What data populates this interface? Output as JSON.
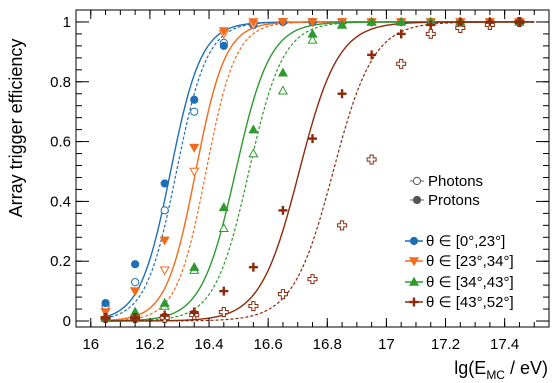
{
  "chart_data": {
    "type": "scatter",
    "title": "",
    "xlabel": "lg(E",
    "xlabel_sub": "MC",
    "xlabel_suffix": " / eV)",
    "ylabel": "Array trigger efficiency",
    "xlim": [
      15.95,
      17.55
    ],
    "ylim": [
      -0.02,
      1.04
    ],
    "x_ticks": [
      16,
      16.2,
      16.4,
      16.6,
      16.8,
      17,
      17.2,
      17.4
    ],
    "x_tick_labels": [
      "16",
      "16.2",
      "16.4",
      "16.6",
      "16.8",
      "17",
      "17.2",
      "17.4"
    ],
    "y_ticks": [
      0,
      0.2,
      0.4,
      0.6,
      0.8,
      1
    ],
    "y_tick_labels": [
      "0",
      "0.2",
      "0.4",
      "0.6",
      "0.8",
      "1"
    ],
    "grid": false,
    "legend_particles": [
      {
        "label": "Photons",
        "marker": "open"
      },
      {
        "label": "Protons",
        "marker": "filled"
      }
    ],
    "legend_placement": "right",
    "series": [
      {
        "name": "θ ∈ [0°,23°]",
        "color": "#1f6fb4",
        "marker": "circle",
        "fit_proton": {
          "center": 16.27,
          "width": 0.052
        },
        "fit_photon": {
          "center": 16.29,
          "width": 0.052
        },
        "x": [
          16.05,
          16.15,
          16.25,
          16.35,
          16.45,
          16.55,
          16.65,
          16.75,
          16.85,
          16.95,
          17.05,
          17.15,
          17.25,
          17.35,
          17.45
        ],
        "protons": [
          0.06,
          0.19,
          0.46,
          0.74,
          0.92,
          0.99,
          1.0,
          1.0,
          1.0,
          1.0,
          1.0,
          1.0,
          1.0,
          1.0,
          1.0
        ],
        "photons": [
          0.05,
          0.13,
          0.37,
          0.7,
          0.93,
          0.99,
          1.0,
          1.0,
          1.0,
          1.0,
          1.0,
          1.0,
          1.0,
          1.0,
          1.0
        ]
      },
      {
        "name": "θ ∈ [23°,34°]",
        "color": "#f26a1b",
        "marker": "triangle-down",
        "fit_proton": {
          "center": 16.355,
          "width": 0.05
        },
        "fit_photon": {
          "center": 16.39,
          "width": 0.05
        },
        "x": [
          16.05,
          16.15,
          16.25,
          16.35,
          16.45,
          16.55,
          16.65,
          16.75,
          16.85,
          16.95,
          17.05,
          17.15,
          17.25,
          17.35,
          17.45
        ],
        "protons": [
          0.03,
          0.1,
          0.27,
          0.58,
          0.97,
          1.0,
          1.0,
          1.0,
          1.0,
          1.0,
          1.0,
          1.0,
          1.0,
          1.0,
          1.0
        ],
        "photons": [
          0.03,
          0.1,
          0.17,
          0.5,
          0.96,
          0.99,
          1.0,
          1.0,
          1.0,
          1.0,
          1.0,
          1.0,
          1.0,
          1.0,
          1.0
        ]
      },
      {
        "name": "θ ∈ [34°,43°]",
        "color": "#2e9a2e",
        "marker": "triangle-up",
        "fit_proton": {
          "center": 16.49,
          "width": 0.058
        },
        "fit_photon": {
          "center": 16.535,
          "width": 0.058
        },
        "x": [
          16.05,
          16.15,
          16.25,
          16.35,
          16.45,
          16.55,
          16.65,
          16.75,
          16.85,
          16.95,
          17.05,
          17.15,
          17.25,
          17.35,
          17.45
        ],
        "protons": [
          0.01,
          0.03,
          0.06,
          0.18,
          0.38,
          0.64,
          0.83,
          0.96,
          0.99,
          1.0,
          1.0,
          1.0,
          1.0,
          1.0,
          1.0
        ],
        "photons": [
          0.01,
          0.03,
          0.05,
          0.17,
          0.31,
          0.56,
          0.77,
          0.94,
          0.99,
          1.0,
          1.0,
          1.0,
          1.0,
          1.0,
          1.0
        ]
      },
      {
        "name": "θ ∈ [43°,52°]",
        "color": "#8b2b0b",
        "marker": "cross",
        "fit_proton": {
          "center": 16.705,
          "width": 0.066
        },
        "fit_photon": {
          "center": 16.82,
          "width": 0.068
        },
        "x": [
          16.05,
          16.15,
          16.25,
          16.35,
          16.45,
          16.55,
          16.65,
          16.75,
          16.85,
          16.95,
          17.05,
          17.15,
          17.25,
          17.35,
          17.45
        ],
        "protons": [
          0.01,
          0.01,
          0.02,
          0.03,
          0.1,
          0.18,
          0.37,
          0.61,
          0.76,
          0.89,
          0.96,
          0.99,
          1.0,
          1.0,
          1.0
        ],
        "photons": [
          0.01,
          0.01,
          0.01,
          0.02,
          0.03,
          0.05,
          0.09,
          0.14,
          0.32,
          0.54,
          0.86,
          0.96,
          0.98,
          0.99,
          1.0
        ]
      }
    ]
  }
}
